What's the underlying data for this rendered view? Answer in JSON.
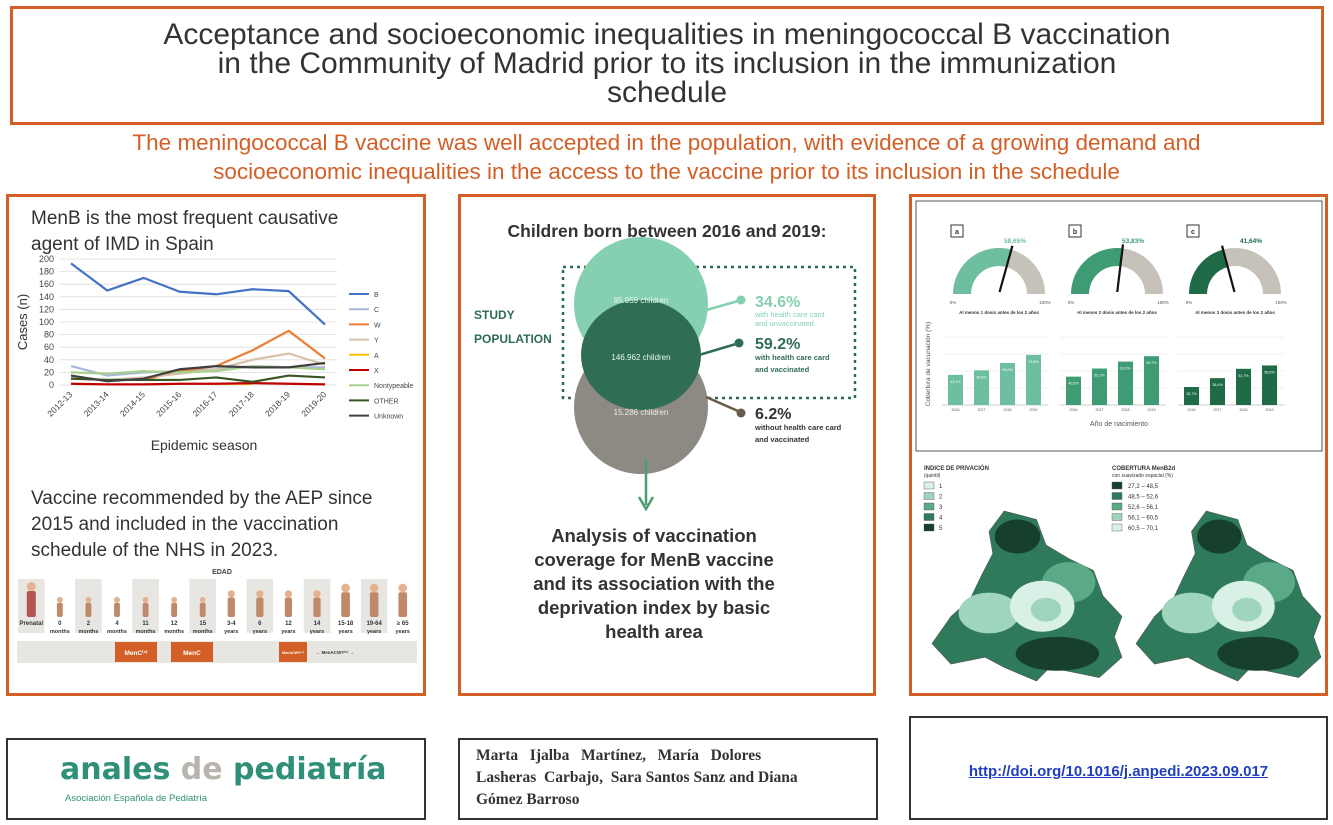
{
  "title": {
    "line1": "Acceptance and socioeconomic inequalities in meningococcal B vaccination",
    "line2": "in the Community of Madrid prior to its inclusion in the immunization",
    "line3": "schedule"
  },
  "subtitle": {
    "line1": "The meningococcal B vaccine was well accepted in the population, with evidence of a growing demand and",
    "line2": "socioeconomic inequalities in the access to the vaccine prior to its inclusion in the schedule"
  },
  "left_panel": {
    "heading_line1": "MenB is the most frequent causative",
    "heading_line2": "agent of IMD in Spain",
    "vaccine_line1": "Vaccine recommended by the AEP since",
    "vaccine_line2": "2015 and included in the vaccination",
    "vaccine_line3": "schedule of the NHS in 2023.",
    "schedule": {
      "header": "EDAD",
      "ages": [
        [
          "Prenatal",
          ""
        ],
        [
          "0",
          "months"
        ],
        [
          "2",
          "months"
        ],
        [
          "4",
          "months"
        ],
        [
          "11",
          "months"
        ],
        [
          "12",
          "months"
        ],
        [
          "15",
          "months"
        ],
        [
          "3-4",
          "years"
        ],
        [
          "6",
          "years"
        ],
        [
          "12",
          "years"
        ],
        [
          "14",
          "years"
        ],
        [
          "15-18",
          "years"
        ],
        [
          "19-64",
          "years"
        ],
        [
          "≥ 65",
          "years"
        ]
      ],
      "bar1": "MenC⁽¹⁾",
      "bar2": "MenC",
      "bar3": "MenACWY⁽⁴⁾",
      "bar4": "←  MenACWY⁽⁵⁾  →"
    }
  },
  "chart_data": {
    "type": "line",
    "title": "",
    "xlabel": "Epidemic season",
    "ylabel": "Cases (n)",
    "ylim": [
      0,
      200
    ],
    "yticks": [
      0,
      20,
      40,
      60,
      80,
      100,
      120,
      140,
      160,
      180,
      200
    ],
    "categories": [
      "2012-13",
      "2013-14",
      "2014-15",
      "2015-16",
      "2016-17",
      "2017-18",
      "2018-19",
      "2019-20"
    ],
    "grid": true,
    "legend": "right",
    "series": [
      {
        "name": "B",
        "color": "#4472c4",
        "values": [
          193,
          150,
          170,
          148,
          144,
          152,
          149,
          96
        ]
      },
      {
        "name": "C",
        "color": "#a5b7dd",
        "values": [
          30,
          15,
          20,
          22,
          25,
          30,
          28,
          28
        ]
      },
      {
        "name": "W",
        "color": "#ed7d31",
        "values": [
          10,
          8,
          8,
          22,
          30,
          55,
          86,
          42
        ]
      },
      {
        "name": "Y",
        "color": "#d6c2a8",
        "values": [
          12,
          8,
          12,
          18,
          25,
          40,
          50,
          32
        ]
      },
      {
        "name": "A",
        "color": "#ffc000",
        "values": [
          null,
          null,
          null,
          null,
          2,
          2,
          null,
          null
        ]
      },
      {
        "name": "X",
        "color": "#c00000",
        "values": [
          2,
          1,
          1,
          2,
          2,
          3,
          2,
          1
        ]
      },
      {
        "name": "Nontypeable",
        "color": "#a9d18e",
        "values": [
          20,
          18,
          22,
          20,
          22,
          30,
          28,
          25
        ]
      },
      {
        "name": "OTHER",
        "color": "#375623",
        "values": [
          10,
          8,
          8,
          8,
          12,
          5,
          15,
          12
        ]
      },
      {
        "name": "Unknown",
        "color": "#404040",
        "values": [
          15,
          6,
          10,
          25,
          30,
          28,
          28,
          35
        ]
      }
    ]
  },
  "middle_panel": {
    "heading": "Children born between 2016 and 2019:",
    "study_label1": "STUDY",
    "study_label2": "POPULATION",
    "circle1": "85.959 children",
    "circle_overlap": "146.962 children",
    "circle2": "15.286 children",
    "stat1": {
      "value": "34.6%",
      "line1": "with health care card",
      "line2": "and unvaccinated"
    },
    "stat2": {
      "value": "59.2%",
      "line1": "with health care card",
      "line2": "and vaccinated"
    },
    "stat3": {
      "value": "6.2%",
      "line1": "without health care card",
      "line2": "and vaccinated"
    },
    "analysis_line1": "Analysis of vaccination",
    "analysis_line2": "coverage for MenB vaccine",
    "analysis_line3": "and its association with the",
    "analysis_line4": "deprivation index by basic",
    "analysis_line5": "health area"
  },
  "right_panel": {
    "gauges": [
      {
        "letter": "a",
        "value": "58,65%",
        "pct": 0.5865,
        "caption": "Al menos 1 dosis antes de los 2 años",
        "color": "#6dbf9f"
      },
      {
        "letter": "b",
        "value": "53,83%",
        "pct": 0.5383,
        "caption": "Al menos 2 dosis antes de los 2 años",
        "color": "#3e9b73"
      },
      {
        "letter": "c",
        "value": "41,64%",
        "pct": 0.4164,
        "caption": "Al menos 3 dosis antes de los 2 años",
        "color": "#1f6b48"
      }
    ],
    "gauge_min": "0%",
    "gauge_max": "100%",
    "bars_ylabel": "Cobertura de vacunación (%)",
    "bars_xlabel": "Año de nacimiento",
    "bar_groups": [
      {
        "years": [
          "2016",
          "2017",
          "2018",
          "2019"
        ],
        "values": [
          "43,1%",
          "49,5%",
          "60,0%",
          "71,6%"
        ],
        "heights": [
          43.1,
          49.5,
          60.0,
          71.6
        ],
        "color": "#6dbf9f"
      },
      {
        "years": [
          "2016",
          "2017",
          "2018",
          "2019"
        ],
        "values": [
          "40,5%",
          "52,1%",
          "62,0%",
          "69,7%"
        ],
        "heights": [
          40.5,
          52.1,
          62.0,
          69.7
        ],
        "color": "#3e9b73"
      },
      {
        "years": [
          "2016",
          "2017",
          "2018",
          "2019"
        ],
        "values": [
          "25,7%",
          "38,4%",
          "51,7%",
          "56,5%"
        ],
        "heights": [
          25.7,
          38.4,
          51.7,
          56.5
        ],
        "color": "#1f6b48"
      }
    ],
    "map1_title": "INDICE DE PRIVACIÓN",
    "map1_sub": "(quintil)",
    "map1_legend": [
      "1",
      "2",
      "3",
      "4",
      "5"
    ],
    "map1_colors": [
      "#d8f0e6",
      "#9fd5bd",
      "#5aa987",
      "#2e7a5a",
      "#173f2e"
    ],
    "map2_title": "COBERTURA MenB2d",
    "map2_sub": "con suavizado espacial (%)",
    "map2_legend": [
      "27,2 – 48,5",
      "48,5 – 52,6",
      "52,6 – 56,1",
      "56,1 – 60,5",
      "60,5 – 70,1"
    ],
    "map2_colors": [
      "#173f2e",
      "#2e7a5a",
      "#5aa987",
      "#9fd5bd",
      "#d8f0e6"
    ]
  },
  "journal": {
    "name_part1": "anales ",
    "name_part2": "de ",
    "name_part3": "pediatría",
    "subtitle": "Asociación Española de Pediatría"
  },
  "authors": {
    "line1": "Marta   Ijalba   Martínez,   María   Dolores",
    "line2": "Lasheras  Carbajo,  Sara Santos Sanz and Diana",
    "line3": "Gómez Barroso"
  },
  "doi": "http://doi.org/10.1016/j.anpedi.2023.09.017"
}
